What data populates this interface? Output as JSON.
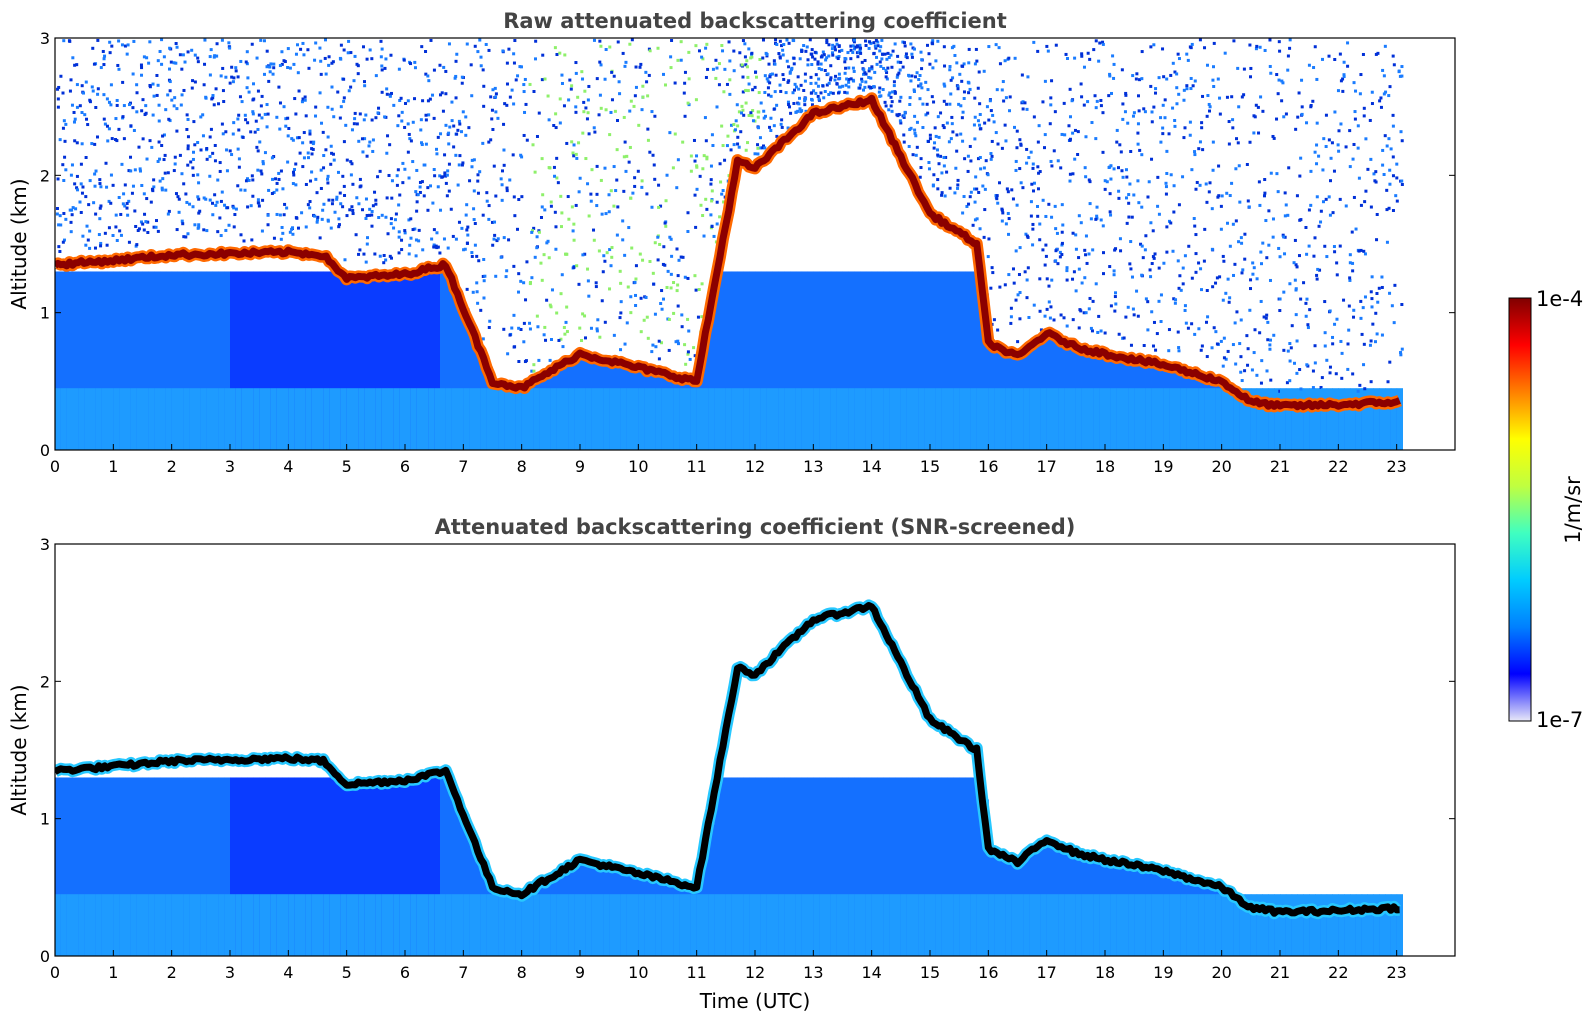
{
  "chart_data": [
    {
      "type": "heatmap",
      "title": "Raw attenuated backscattering coefficient",
      "xlabel": "",
      "ylabel": "Altitude (km)",
      "xlim": [
        0,
        24
      ],
      "ylim": [
        0,
        3
      ],
      "xticks": [
        "0",
        "1",
        "2",
        "3",
        "4",
        "5",
        "6",
        "7",
        "8",
        "9",
        "10",
        "11",
        "12",
        "13",
        "14",
        "15",
        "16",
        "17",
        "18",
        "19",
        "20",
        "21",
        "22",
        "23"
      ],
      "yticks": [
        "0",
        "1",
        "2",
        "3"
      ],
      "data_end_time": 23.1,
      "screened": false,
      "cloud_layer_altitude_km": {
        "time_utc": [
          0,
          1,
          2,
          3,
          4,
          4.6,
          5,
          6,
          6.7,
          7.5,
          8,
          9,
          10,
          11,
          11.7,
          12,
          13,
          14,
          15,
          15.8,
          16,
          16.5,
          17,
          17.5,
          18,
          19,
          20,
          20.5,
          21,
          22,
          23
        ],
        "altitude": [
          1.35,
          1.38,
          1.42,
          1.43,
          1.44,
          1.42,
          1.25,
          1.28,
          1.35,
          0.5,
          0.45,
          0.7,
          0.6,
          0.5,
          2.1,
          2.05,
          2.45,
          2.55,
          1.72,
          1.5,
          0.78,
          0.68,
          0.85,
          0.75,
          0.7,
          0.62,
          0.5,
          0.35,
          0.32,
          0.33,
          0.35
        ]
      }
    },
    {
      "type": "heatmap",
      "title": "Attenuated backscattering coefficient (SNR-screened)",
      "xlabel": "Time (UTC)",
      "ylabel": "Altitude (km)",
      "xlim": [
        0,
        24
      ],
      "ylim": [
        0,
        3
      ],
      "xticks": [
        "0",
        "1",
        "2",
        "3",
        "4",
        "5",
        "6",
        "7",
        "8",
        "9",
        "10",
        "11",
        "12",
        "13",
        "14",
        "15",
        "16",
        "17",
        "18",
        "19",
        "20",
        "21",
        "22",
        "23"
      ],
      "yticks": [
        "0",
        "1",
        "2",
        "3"
      ],
      "data_end_time": 23.1,
      "screened": true,
      "cloud_layer_altitude_km": {
        "time_utc": [
          0,
          1,
          2,
          3,
          4,
          4.6,
          5,
          6,
          6.7,
          7.5,
          8,
          9,
          10,
          11,
          11.7,
          12,
          13,
          14,
          15,
          15.8,
          16,
          16.5,
          17,
          17.5,
          18,
          19,
          20,
          20.5,
          21,
          22,
          23
        ],
        "altitude": [
          1.35,
          1.38,
          1.42,
          1.43,
          1.44,
          1.42,
          1.25,
          1.28,
          1.35,
          0.5,
          0.45,
          0.7,
          0.6,
          0.5,
          2.1,
          2.05,
          2.45,
          2.55,
          1.72,
          1.5,
          0.78,
          0.68,
          0.85,
          0.75,
          0.7,
          0.62,
          0.5,
          0.35,
          0.32,
          0.33,
          0.35
        ]
      }
    }
  ],
  "colorbar": {
    "label": "1/m/sr",
    "max_label": "1e-4",
    "min_label": "1e-7",
    "scale": "log",
    "colormap": "jet",
    "stops": [
      "#e8e8f8",
      "#0000ff",
      "#0080ff",
      "#00ccff",
      "#40ffc0",
      "#c0ff40",
      "#ffff00",
      "#ff8000",
      "#ff0000",
      "#800000"
    ]
  },
  "colors": {
    "background": "#ffffff",
    "title": "#444444",
    "cloud_core_raw": "#8b0000",
    "cloud_core_screened": "#000000",
    "aerosol": "#1e8cff",
    "noise": "#1e90ff"
  }
}
